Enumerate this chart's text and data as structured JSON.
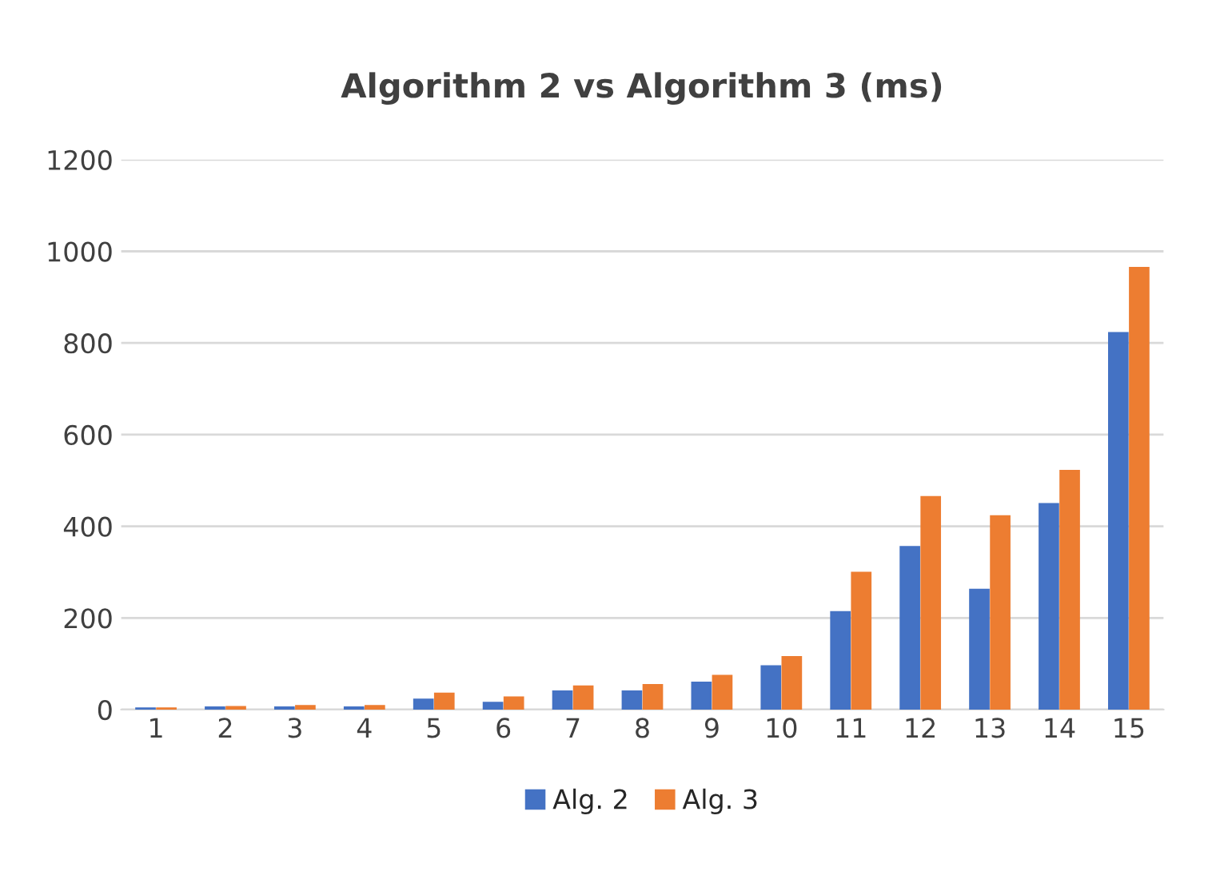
{
  "chart_data": {
    "type": "bar",
    "title": "Algorithm 2 vs Algorithm 3 (ms)",
    "categories": [
      "1",
      "2",
      "3",
      "4",
      "5",
      "6",
      "7",
      "8",
      "9",
      "10",
      "11",
      "12",
      "13",
      "14",
      "15"
    ],
    "series": [
      {
        "name": "Alg. 2",
        "color": "#4472c4",
        "values": [
          3,
          5,
          5,
          5,
          22,
          15,
          40,
          40,
          59,
          95,
          213,
          355,
          262,
          449,
          822
        ]
      },
      {
        "name": "Alg. 3",
        "color": "#ed7d31",
        "values": [
          3,
          6,
          8,
          8,
          35,
          27,
          51,
          54,
          74,
          115,
          299,
          464,
          422,
          521,
          964
        ]
      }
    ],
    "ylim": [
      0,
      1200
    ],
    "yticks": [
      0,
      200,
      400,
      600,
      800,
      1000,
      1200
    ],
    "grid": "y",
    "legend": "bottom"
  }
}
